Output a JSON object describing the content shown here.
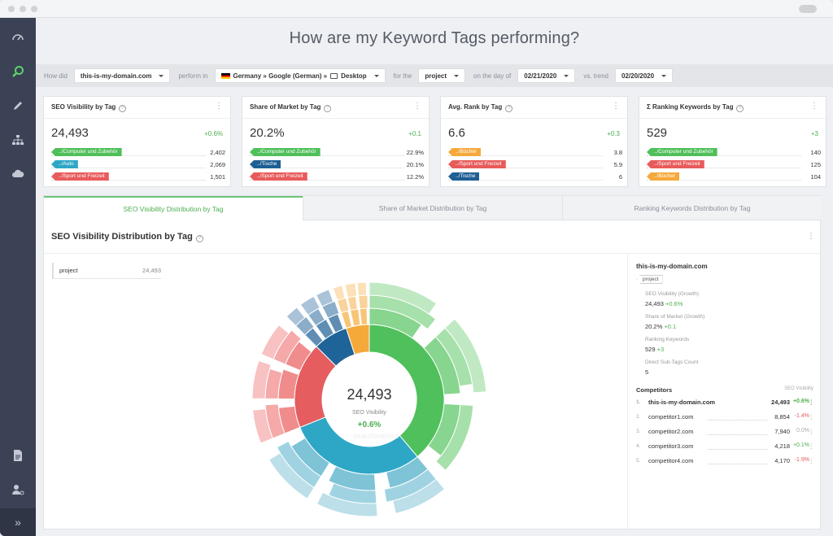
{
  "page_title": "How are my Keyword Tags performing?",
  "filters": {
    "how_did_label": "How did",
    "domain": "this-is-my-domain.com",
    "perform_in_label": "perform in",
    "market": "Germany » Google (German) »",
    "device": "Desktop",
    "for_the_label": "for the",
    "tag_scope": "project",
    "on_day_label": "on the day of",
    "date": "02/21/2020",
    "vs_trend_label": "vs. trend",
    "compare_date": "02/20/2020"
  },
  "cards": [
    {
      "title": "SEO Visibility by Tag",
      "value": "24,493",
      "change": "+0.6%",
      "tags": [
        {
          "label": "../Computer und Zubehör",
          "color": "#4fbf5a",
          "value": "2,402"
        },
        {
          "label": "../Auto",
          "color": "#2ea7c6",
          "value": "2,069"
        },
        {
          "label": "../Sport und Freizeit",
          "color": "#e85b5b",
          "value": "1,501"
        }
      ]
    },
    {
      "title": "Share of Market by Tag",
      "value": "20.2%",
      "change": "+0.1",
      "tags": [
        {
          "label": "../Computer und Zubehör",
          "color": "#4fbf5a",
          "value": "22.9%"
        },
        {
          "label": "../Tische",
          "color": "#1e5f94",
          "value": "20.1%"
        },
        {
          "label": "../Sport und Freizeit",
          "color": "#e85b5b",
          "value": "12.2%"
        }
      ]
    },
    {
      "title": "Avg. Rank by Tag",
      "value": "6.6",
      "change": "+0.3",
      "tags": [
        {
          "label": "../Bücher",
          "color": "#f5a93b",
          "value": "3.8"
        },
        {
          "label": "../Sport und Freizeit",
          "color": "#e85b5b",
          "value": "5.9"
        },
        {
          "label": "../Tische",
          "color": "#1e5f94",
          "value": "6"
        }
      ]
    },
    {
      "title": "Σ Ranking Keywords by Tag",
      "value": "529",
      "change": "+3",
      "tags": [
        {
          "label": "../Computer und Zubehör",
          "color": "#4fbf5a",
          "value": "140"
        },
        {
          "label": "../Sport und Freizeit",
          "color": "#e85b5b",
          "value": "125"
        },
        {
          "label": "../Bücher",
          "color": "#f5a93b",
          "value": "104"
        }
      ]
    }
  ],
  "tabs": [
    "SEO Visibility Distribution by Tag",
    "Share of Market Distribution by Tag",
    "Ranking Keywords Distribution by Tag"
  ],
  "panel_title": "SEO Visibility Distribution by Tag",
  "tree": {
    "name": "project",
    "value": "24,493"
  },
  "sunburst_center": {
    "value": "24,493",
    "label": "SEO Visibility",
    "change": "+0.6%",
    "watermark": "searchmetrics"
  },
  "details": {
    "domain": "this-is-my-domain.com",
    "badge": "project",
    "metrics": [
      {
        "label": "SEO Visibility (Growth)",
        "value": "24,493",
        "change": "+0.6%"
      },
      {
        "label": "Share of Market (Growth)",
        "value": "20.2%",
        "change": "+0.1"
      },
      {
        "label": "Ranking Keywords",
        "value": "529",
        "change": "+3"
      },
      {
        "label": "Direct Sub-Tags Count",
        "value": "5",
        "change": ""
      }
    ],
    "competitors_title": "Competitors",
    "competitors_metric": "SEO Visibility",
    "competitors": [
      {
        "idx": "1.",
        "name": "this-is-my-domain.com",
        "value": "24,493",
        "change": "+0.6%",
        "tone": "g"
      },
      {
        "idx": "2.",
        "name": "competitor1.com",
        "value": "8,854",
        "change": "-1.4%",
        "tone": "rd"
      },
      {
        "idx": "3.",
        "name": "competitor2.com",
        "value": "7,940",
        "change": "0.0%",
        "tone": "grey"
      },
      {
        "idx": "4.",
        "name": "competitor3.com",
        "value": "4,218",
        "change": "+0.1%",
        "tone": "g"
      },
      {
        "idx": "5.",
        "name": "competitor4.com",
        "value": "4,170",
        "change": "-1.9%",
        "tone": "rd"
      }
    ]
  }
}
